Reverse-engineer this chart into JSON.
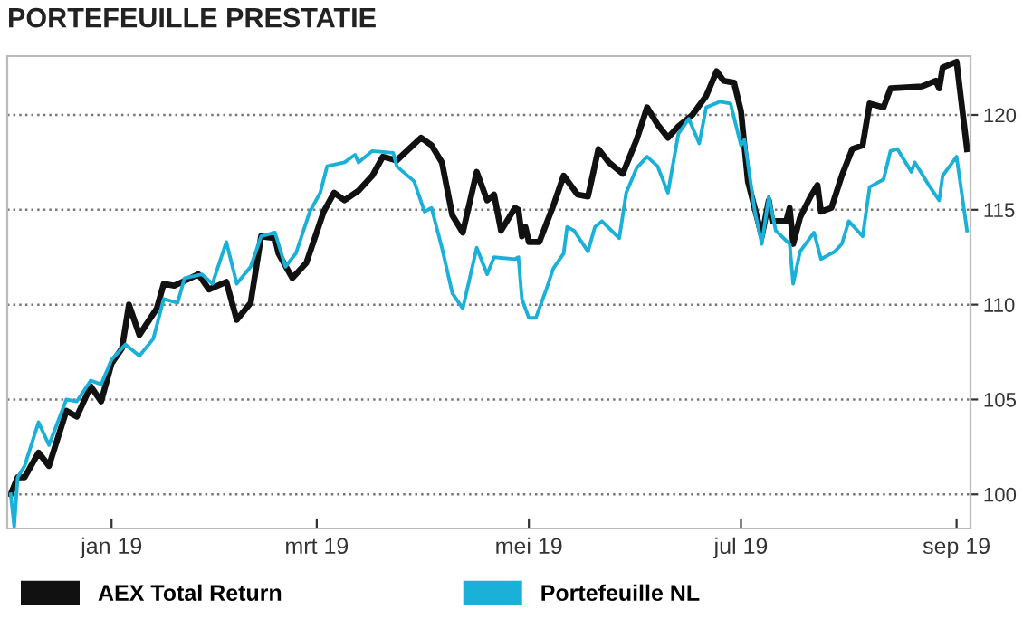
{
  "chart_data": {
    "type": "line",
    "title": "PORTEFEUILLE PRESTATIE",
    "xlim": [
      "2018-12-02",
      "2019-09-05"
    ],
    "xticks": [
      {
        "value": "2019-01-01",
        "label": "jan 19"
      },
      {
        "value": "2019-03-01",
        "label": "mrt 19"
      },
      {
        "value": "2019-05-01",
        "label": "mei 19"
      },
      {
        "value": "2019-07-01",
        "label": "jul 19"
      },
      {
        "value": "2019-09-01",
        "label": "sep 19"
      }
    ],
    "ylim": [
      98.2,
      123.1
    ],
    "yticks": [
      100,
      105,
      110,
      115,
      120
    ],
    "grid": "y",
    "legend": "bottom",
    "line_style": "solid",
    "series": [
      {
        "name": "AEX Total Return",
        "color": "#111111",
        "x": [
          "2018-12-03",
          "2018-12-05",
          "2018-12-07",
          "2018-12-11",
          "2018-12-14",
          "2018-12-19",
          "2018-12-22",
          "2018-12-26",
          "2018-12-29",
          "2019-01-01",
          "2019-01-04",
          "2019-01-06",
          "2019-01-09",
          "2019-01-14",
          "2019-01-16",
          "2019-01-19",
          "2019-01-26",
          "2019-01-29",
          "2019-02-03",
          "2019-02-06",
          "2019-02-10",
          "2019-02-13",
          "2019-02-17",
          "2019-02-18",
          "2019-02-22",
          "2019-02-26",
          "2019-03-03",
          "2019-03-06",
          "2019-03-09",
          "2019-03-13",
          "2019-03-17",
          "2019-03-20",
          "2019-03-24",
          "2019-03-31",
          "2019-04-03",
          "2019-04-06",
          "2019-04-09",
          "2019-04-12",
          "2019-04-16",
          "2019-04-19",
          "2019-04-21",
          "2019-04-23",
          "2019-04-27",
          "2019-04-28",
          "2019-04-29",
          "2019-04-30",
          "2019-05-01",
          "2019-05-04",
          "2019-05-08",
          "2019-05-11",
          "2019-05-15",
          "2019-05-18",
          "2019-05-21",
          "2019-05-24",
          "2019-05-28",
          "2019-06-01",
          "2019-06-04",
          "2019-06-07",
          "2019-06-10",
          "2019-06-13",
          "2019-06-17",
          "2019-06-21",
          "2019-06-24",
          "2019-06-26",
          "2019-06-29",
          "2019-07-01",
          "2019-07-03",
          "2019-07-07",
          "2019-07-09",
          "2019-07-10",
          "2019-07-14",
          "2019-07-15",
          "2019-07-16",
          "2019-07-18",
          "2019-07-21",
          "2019-07-23",
          "2019-07-24",
          "2019-07-27",
          "2019-07-30",
          "2019-08-02",
          "2019-08-05",
          "2019-08-07",
          "2019-08-11",
          "2019-08-13",
          "2019-08-22",
          "2019-08-26",
          "2019-08-27",
          "2019-08-28",
          "2019-09-01",
          "2019-09-04"
        ],
        "values": [
          100.0,
          100.9,
          100.9,
          102.2,
          101.5,
          104.4,
          104.1,
          105.7,
          104.9,
          106.9,
          107.7,
          110.0,
          108.4,
          109.8,
          111.1,
          111.0,
          111.6,
          110.8,
          111.2,
          109.2,
          110.1,
          113.6,
          113.5,
          112.7,
          111.4,
          112.2,
          114.9,
          115.9,
          115.5,
          116.0,
          116.8,
          117.8,
          117.6,
          118.8,
          118.4,
          117.5,
          114.7,
          113.8,
          117.0,
          115.5,
          115.8,
          113.9,
          115.1,
          115.0,
          113.6,
          114.1,
          113.3,
          113.3,
          115.2,
          116.8,
          115.8,
          115.7,
          118.2,
          117.5,
          116.9,
          118.7,
          120.4,
          119.5,
          118.8,
          119.4,
          120.0,
          121.0,
          122.3,
          121.8,
          121.7,
          120.2,
          116.5,
          113.6,
          115.5,
          114.4,
          114.4,
          115.1,
          113.2,
          114.6,
          115.7,
          116.3,
          114.9,
          115.1,
          116.8,
          118.2,
          118.4,
          120.6,
          120.4,
          121.4,
          121.5,
          121.8,
          121.4,
          122.5,
          122.8,
          118.2
        ]
      },
      {
        "name": "Portefeuille NL",
        "color": "#1ab0d8",
        "x": [
          "2018-12-03",
          "2018-12-04",
          "2018-12-05",
          "2018-12-07",
          "2018-12-11",
          "2018-12-14",
          "2018-12-19",
          "2018-12-22",
          "2018-12-26",
          "2018-12-29",
          "2019-01-01",
          "2019-01-05",
          "2019-01-09",
          "2019-01-13",
          "2019-01-16",
          "2019-01-20",
          "2019-01-22",
          "2019-01-27",
          "2019-01-30",
          "2019-02-03",
          "2019-02-06",
          "2019-02-10",
          "2019-02-13",
          "2019-02-17",
          "2019-02-20",
          "2019-02-23",
          "2019-02-27",
          "2019-03-02",
          "2019-03-04",
          "2019-03-09",
          "2019-03-12",
          "2019-03-13",
          "2019-03-17",
          "2019-03-23",
          "2019-03-24",
          "2019-03-29",
          "2019-04-01",
          "2019-04-03",
          "2019-04-06",
          "2019-04-09",
          "2019-04-12",
          "2019-04-16",
          "2019-04-19",
          "2019-04-21",
          "2019-04-27",
          "2019-04-28",
          "2019-04-29",
          "2019-05-01",
          "2019-05-03",
          "2019-05-06",
          "2019-05-08",
          "2019-05-11",
          "2019-05-12",
          "2019-05-14",
          "2019-05-18",
          "2019-05-20",
          "2019-05-22",
          "2019-05-27",
          "2019-05-29",
          "2019-06-01",
          "2019-06-04",
          "2019-06-07",
          "2019-06-10",
          "2019-06-13",
          "2019-06-16",
          "2019-06-19",
          "2019-06-21",
          "2019-06-25",
          "2019-06-28",
          "2019-07-01",
          "2019-07-02",
          "2019-07-05",
          "2019-07-07",
          "2019-07-09",
          "2019-07-11",
          "2019-07-15",
          "2019-07-16",
          "2019-07-18",
          "2019-07-22",
          "2019-07-24",
          "2019-07-28",
          "2019-07-30",
          "2019-08-01",
          "2019-08-05",
          "2019-08-07",
          "2019-08-11",
          "2019-08-13",
          "2019-08-15",
          "2019-08-19",
          "2019-08-20",
          "2019-08-24",
          "2019-08-27",
          "2019-08-28",
          "2019-09-01",
          "2019-09-04"
        ],
        "values": [
          100.0,
          98.3,
          100.9,
          101.5,
          103.8,
          102.6,
          105.0,
          104.9,
          106.0,
          105.8,
          107.1,
          107.9,
          107.3,
          108.2,
          110.3,
          110.1,
          111.4,
          111.6,
          111.1,
          113.3,
          111.1,
          112.0,
          113.6,
          113.8,
          112.0,
          112.7,
          114.9,
          115.9,
          117.3,
          117.5,
          117.9,
          117.5,
          118.1,
          118.0,
          117.3,
          116.5,
          114.9,
          115.1,
          113.0,
          110.6,
          109.8,
          113.0,
          111.6,
          112.5,
          112.4,
          112.5,
          110.3,
          109.3,
          109.3,
          110.8,
          111.9,
          112.7,
          114.1,
          113.9,
          112.8,
          114.1,
          114.4,
          113.5,
          115.9,
          117.2,
          117.8,
          117.3,
          115.9,
          119.0,
          119.8,
          118.5,
          120.4,
          120.7,
          120.6,
          118.4,
          118.7,
          114.9,
          113.2,
          115.7,
          113.9,
          113.2,
          111.1,
          112.8,
          113.8,
          112.4,
          112.8,
          113.2,
          114.4,
          113.6,
          116.2,
          116.6,
          118.1,
          118.2,
          117.0,
          117.5,
          116.3,
          115.5,
          116.8,
          117.8,
          113.9
        ]
      }
    ]
  }
}
